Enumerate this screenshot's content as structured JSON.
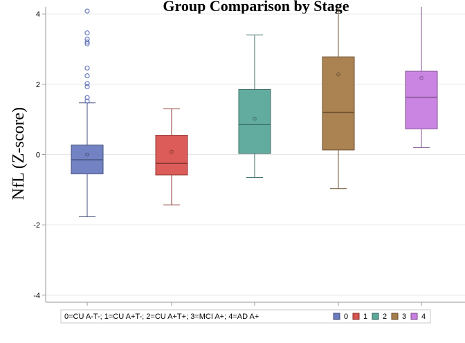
{
  "chart_data": {
    "type": "box",
    "title": "Group Comparison by Stage",
    "ylabel": "NfL (Z-score)",
    "xlabel": "",
    "ylim": [
      -4.2,
      4.2
    ],
    "yticks": [
      -4,
      -2,
      0,
      2,
      4
    ],
    "grid": true,
    "categories": [
      "0",
      "1",
      "2",
      "3",
      "4"
    ],
    "boxes": [
      {
        "category": "0",
        "color": "#6b7bbf",
        "q1": -0.55,
        "median": -0.15,
        "q3": 0.27,
        "whisker_low": -1.77,
        "whisker_high": 1.47,
        "mean": 0.0,
        "outliers": [
          1.52,
          1.62,
          1.93,
          2.02,
          2.24,
          2.46,
          3.15,
          3.2,
          3.28,
          3.46,
          4.08
        ]
      },
      {
        "category": "1",
        "color": "#d9534f",
        "q1": -0.58,
        "median": -0.25,
        "q3": 0.55,
        "whisker_low": -1.43,
        "whisker_high": 1.3,
        "mean": 0.08,
        "outliers": []
      },
      {
        "category": "2",
        "color": "#5aa89a",
        "q1": 0.03,
        "median": 0.85,
        "q3": 1.85,
        "whisker_low": -0.65,
        "whisker_high": 3.4,
        "mean": 1.02,
        "outliers": []
      },
      {
        "category": "3",
        "color": "#a67c4a",
        "q1": 0.13,
        "median": 1.2,
        "q3": 2.78,
        "whisker_low": -0.97,
        "whisker_high": 4.5,
        "mean": 2.28,
        "outliers": []
      },
      {
        "category": "4",
        "color": "#c77ee0",
        "q1": 0.73,
        "median": 1.63,
        "q3": 2.37,
        "whisker_low": 0.2,
        "whisker_high": 4.5,
        "mean": 2.18,
        "outliers": []
      }
    ],
    "legend": {
      "description": "0=CU A-T-; 1=CU A+T-; 2=CU A+T+; 3=MCI A+; 4=AD A+",
      "entries": [
        "0",
        "1",
        "2",
        "3",
        "4"
      ],
      "placement": "bottom"
    }
  }
}
